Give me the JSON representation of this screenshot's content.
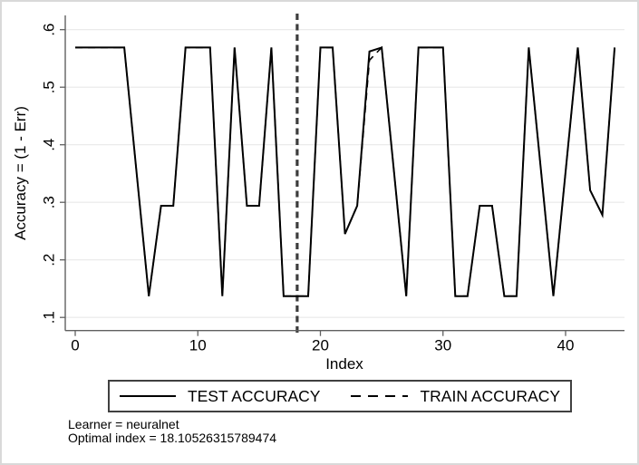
{
  "figure": {
    "background": "#ffffff",
    "border_color": "#d9d9d9"
  },
  "chart_data": {
    "type": "line",
    "title": "",
    "xlabel": "Index",
    "ylabel": "Accuracy = (1 - Err)",
    "xlim": [
      -0.8,
      44.8
    ],
    "ylim": [
      0.1,
      0.6
    ],
    "grid": "horizontal-only",
    "legend_position": "bottom",
    "xticks": [
      {
        "v": 0,
        "label": "0"
      },
      {
        "v": 10,
        "label": "10"
      },
      {
        "v": 20,
        "label": "20"
      },
      {
        "v": 30,
        "label": "30"
      },
      {
        "v": 40,
        "label": "40"
      }
    ],
    "yticks": [
      {
        "v": 0.1,
        "label": ".1"
      },
      {
        "v": 0.2,
        "label": ".2"
      },
      {
        "v": 0.3,
        "label": ".3"
      },
      {
        "v": 0.4,
        "label": ".4"
      },
      {
        "v": 0.5,
        "label": ".5"
      },
      {
        "v": 0.6,
        "label": ".6"
      }
    ],
    "x_is_index_starting_at": 0,
    "series": [
      {
        "name": "TEST ACCURACY",
        "style": "solid",
        "color": "#000000",
        "values": [
          0.569,
          0.569,
          0.569,
          0.569,
          0.569,
          0.353,
          0.137,
          0.294,
          0.294,
          0.569,
          0.569,
          0.569,
          0.137,
          0.569,
          0.294,
          0.294,
          0.569,
          0.137,
          0.137,
          0.137,
          0.569,
          0.569,
          0.245,
          0.294,
          0.562,
          0.569,
          0.353,
          0.137,
          0.569,
          0.569,
          0.569,
          0.137,
          0.137,
          0.294,
          0.294,
          0.137,
          0.137,
          0.569,
          0.353,
          0.137,
          0.353,
          0.569,
          0.321,
          0.278,
          0.569
        ]
      },
      {
        "name": "TRAIN ACCURACY",
        "style": "dashed",
        "color": "#000000",
        "values": [
          0.569,
          0.569,
          0.569,
          0.569,
          0.569,
          0.353,
          0.137,
          0.294,
          0.294,
          0.569,
          0.569,
          0.569,
          0.137,
          0.569,
          0.294,
          0.294,
          0.569,
          0.137,
          0.137,
          0.137,
          0.569,
          0.569,
          0.245,
          0.294,
          0.547,
          0.569,
          0.353,
          0.137,
          0.569,
          0.569,
          0.569,
          0.137,
          0.137,
          0.294,
          0.294,
          0.137,
          0.137,
          0.569,
          0.353,
          0.137,
          0.353,
          0.569,
          0.321,
          0.278,
          0.569
        ]
      }
    ],
    "vline": {
      "x": 18.10526315789474,
      "style": "dashed",
      "color": "#3d3d3d"
    }
  },
  "notes": {
    "line1": "Learner = neuralnet",
    "line2": "Optimal index = 18.10526315789474"
  },
  "colors": {
    "grid": "#e8e8e8",
    "axis": "#606060",
    "text": "#000000"
  }
}
